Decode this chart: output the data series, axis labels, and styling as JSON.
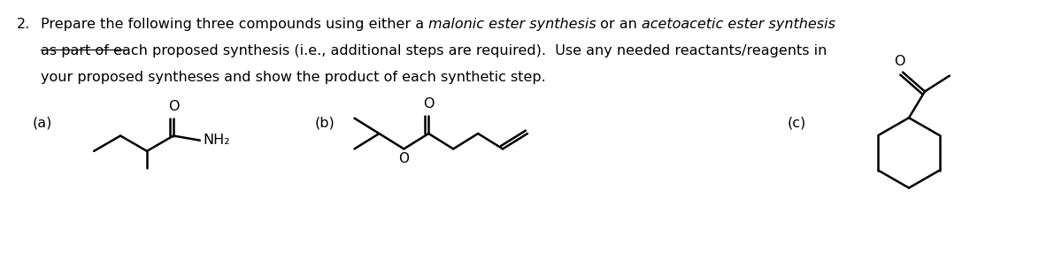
{
  "bg_color": "#ffffff",
  "text_color": "#000000",
  "font_size": 11.5,
  "label_a": "(a)",
  "label_b": "(b)",
  "label_c": "(c)",
  "line1_normal1": "Prepare the following three compounds using either a ",
  "line1_italic1": "malonic ester synthesis",
  "line1_normal2": " or an ",
  "line1_italic2": "acetoacetic ester synthesis",
  "line2_underlined": "as part of",
  "line2_rest": " each proposed synthesis (i.e., additional steps are required).  Use any needed reactants/reagents in",
  "line3": "your proposed syntheses and show the product of each synthetic step."
}
